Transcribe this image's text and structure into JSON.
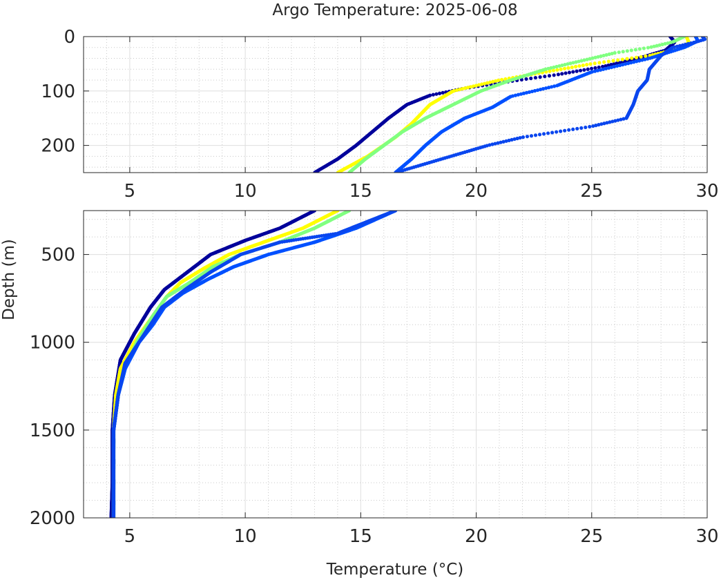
{
  "chart_data": {
    "title": "Argo Temperature: 2025-06-08",
    "xlabel": "Temperature (°C)",
    "ylabel": "Depth (m)",
    "type": "scatter",
    "grid": true,
    "panels": [
      {
        "name": "upper",
        "xlim": [
          3,
          30
        ],
        "ylim": [
          0,
          250
        ],
        "y_reversed": true,
        "x_ticks": [
          5,
          10,
          15,
          20,
          25,
          30
        ],
        "y_ticks": [
          0,
          100,
          200
        ]
      },
      {
        "name": "lower",
        "xlim": [
          3,
          30
        ],
        "ylim": [
          250,
          2000
        ],
        "y_reversed": true,
        "x_ticks": [
          5,
          10,
          15,
          20,
          25,
          30
        ],
        "y_ticks": [
          500,
          1000,
          1500,
          2000
        ]
      }
    ],
    "series": [
      {
        "color": "#00009b",
        "profile": [
          [
            28.4,
            0
          ],
          [
            28.6,
            10
          ],
          [
            28.2,
            25
          ],
          [
            27.0,
            40
          ],
          [
            25.5,
            55
          ],
          [
            23.5,
            70
          ],
          [
            21.5,
            82
          ],
          [
            19.5,
            95
          ],
          [
            18.0,
            108
          ],
          [
            17.0,
            125
          ],
          [
            16.2,
            150
          ],
          [
            15.5,
            175
          ],
          [
            14.8,
            200
          ],
          [
            14.0,
            225
          ],
          [
            13.0,
            250
          ],
          [
            11.5,
            350
          ],
          [
            10.0,
            420
          ],
          [
            8.5,
            500
          ],
          [
            7.5,
            600
          ],
          [
            6.5,
            700
          ],
          [
            5.9,
            800
          ],
          [
            5.2,
            950
          ],
          [
            4.6,
            1100
          ],
          [
            4.35,
            1300
          ],
          [
            4.25,
            1500
          ],
          [
            4.25,
            1800
          ],
          [
            4.2,
            2000
          ]
        ]
      },
      {
        "color": "#ffff00",
        "profile": [
          [
            29.1,
            0
          ],
          [
            29.2,
            10
          ],
          [
            29.0,
            20
          ],
          [
            27.5,
            35
          ],
          [
            25.0,
            50
          ],
          [
            23.0,
            65
          ],
          [
            21.0,
            80
          ],
          [
            19.0,
            100
          ],
          [
            18.0,
            125
          ],
          [
            17.2,
            160
          ],
          [
            16.5,
            185
          ],
          [
            15.3,
            220
          ],
          [
            14.0,
            250
          ],
          [
            12.5,
            350
          ],
          [
            11.0,
            420
          ],
          [
            9.3,
            500
          ],
          [
            8.2,
            580
          ],
          [
            7.2,
            660
          ],
          [
            6.6,
            740
          ],
          [
            6.0,
            850
          ],
          [
            5.2,
            1000
          ],
          [
            4.6,
            1150
          ],
          [
            4.4,
            1300
          ],
          [
            4.3,
            1500
          ],
          [
            4.3,
            2000
          ]
        ]
      },
      {
        "color": "#80ff80",
        "profile": [
          [
            29.0,
            0
          ],
          [
            28.5,
            10
          ],
          [
            27.5,
            20
          ],
          [
            26.0,
            30
          ],
          [
            24.5,
            45
          ],
          [
            23.0,
            60
          ],
          [
            21.5,
            80
          ],
          [
            20.2,
            100
          ],
          [
            19.0,
            125
          ],
          [
            17.8,
            150
          ],
          [
            16.8,
            175
          ],
          [
            16.0,
            200
          ],
          [
            15.2,
            225
          ],
          [
            14.5,
            250
          ],
          [
            13.0,
            350
          ],
          [
            11.5,
            430
          ],
          [
            9.8,
            500
          ],
          [
            8.6,
            570
          ],
          [
            7.6,
            660
          ],
          [
            6.6,
            740
          ],
          [
            6.0,
            850
          ],
          [
            5.3,
            1000
          ],
          [
            4.8,
            1150
          ],
          [
            4.5,
            1300
          ],
          [
            4.3,
            1500
          ],
          [
            4.3,
            2000
          ]
        ]
      },
      {
        "color": "#0050ff",
        "profile": [
          [
            29.5,
            0
          ],
          [
            29.6,
            8
          ],
          [
            29.0,
            20
          ],
          [
            27.5,
            40
          ],
          [
            25.0,
            65
          ],
          [
            23.5,
            90
          ],
          [
            21.5,
            110
          ],
          [
            20.7,
            130
          ],
          [
            19.5,
            150
          ],
          [
            18.5,
            175
          ],
          [
            17.8,
            200
          ],
          [
            17.2,
            225
          ],
          [
            16.5,
            250
          ],
          [
            14.8,
            350
          ],
          [
            13.0,
            430
          ],
          [
            11.0,
            500
          ],
          [
            9.5,
            570
          ],
          [
            8.4,
            640
          ],
          [
            7.3,
            720
          ],
          [
            6.5,
            800
          ],
          [
            6.0,
            900
          ],
          [
            5.4,
            1000
          ],
          [
            4.8,
            1150
          ],
          [
            4.5,
            1300
          ],
          [
            4.3,
            1500
          ],
          [
            4.3,
            2000
          ]
        ]
      },
      {
        "color": "#0a46ee",
        "profile": [
          [
            29.8,
            0
          ],
          [
            29.9,
            5
          ],
          [
            29.5,
            10
          ],
          [
            28.5,
            20
          ],
          [
            28.0,
            35
          ],
          [
            27.5,
            60
          ],
          [
            27.4,
            80
          ],
          [
            27.0,
            100
          ],
          [
            26.8,
            125
          ],
          [
            26.5,
            150
          ],
          [
            25.0,
            165
          ],
          [
            22.0,
            185
          ],
          [
            20.5,
            200
          ],
          [
            18.5,
            225
          ],
          [
            16.5,
            250
          ],
          [
            14.0,
            380
          ],
          [
            11.5,
            430
          ],
          [
            9.8,
            500
          ],
          [
            8.5,
            600
          ],
          [
            7.4,
            700
          ],
          [
            6.4,
            800
          ],
          [
            5.9,
            900
          ],
          [
            5.4,
            1000
          ],
          [
            4.8,
            1120
          ],
          [
            4.5,
            1300
          ],
          [
            4.3,
            1500
          ],
          [
            4.3,
            2000
          ]
        ]
      }
    ]
  }
}
